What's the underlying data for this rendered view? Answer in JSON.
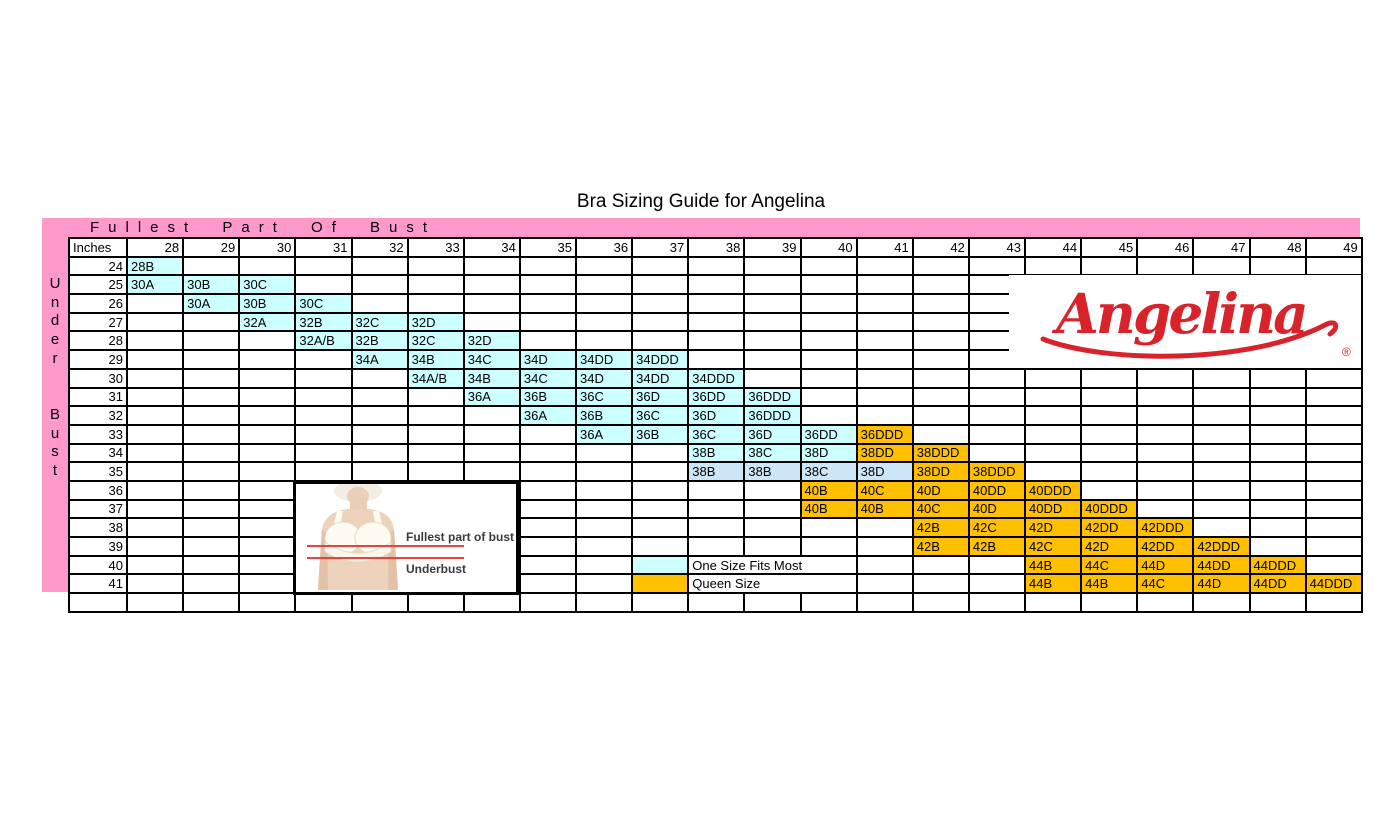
{
  "title": "Bra Sizing Guide for Angelina",
  "logo": {
    "text": "Angelina",
    "reg": "®"
  },
  "colors": {
    "pink_band": "#FF99CC",
    "purple_header": "#CC99FF",
    "one_size_fits_most": "#CCFFFF",
    "pale_blue": "#CDE6F7",
    "queen_size": "#FFC000",
    "grid_line": "#000000",
    "logo_red": "#D8232A",
    "measure_line_red": "#E8423C"
  },
  "diagram": {
    "bust_label": "Fullest part of bust",
    "underbust_label": "Underbust"
  },
  "chart_data": {
    "type": "table",
    "title": "Bra Sizing Guide for Angelina",
    "top_axis_label": "Fullest Part Of Bust",
    "left_axis_words": [
      "Under",
      "Bust"
    ],
    "corner_label": "Inches",
    "bust_inches": [
      28,
      29,
      30,
      31,
      32,
      33,
      34,
      35,
      36,
      37,
      38,
      39,
      40,
      41,
      42,
      43,
      44,
      45,
      46,
      47,
      48,
      49
    ],
    "legend": [
      {
        "label": "One Size Fits Most",
        "swatch": "fit",
        "row": 40,
        "swatch_col": 37,
        "label_col": 38,
        "label_span": 3
      },
      {
        "label": "Queen Size",
        "swatch": "queen",
        "row": 41,
        "swatch_col": 37,
        "label_col": 38,
        "label_span": 3
      }
    ],
    "underbust_rows": [
      {
        "underbust": 24,
        "cells": [
          {
            "col": 28,
            "size": "28B",
            "type": "fit"
          }
        ]
      },
      {
        "underbust": 25,
        "cells": [
          {
            "col": 28,
            "size": "30A",
            "type": "fit"
          },
          {
            "col": 29,
            "size": "30B",
            "type": "fit"
          },
          {
            "col": 30,
            "size": "30C",
            "type": "fit"
          }
        ]
      },
      {
        "underbust": 26,
        "cells": [
          {
            "col": 29,
            "size": "30A",
            "type": "fit"
          },
          {
            "col": 30,
            "size": "30B",
            "type": "fit"
          },
          {
            "col": 31,
            "size": "30C",
            "type": "fit"
          }
        ]
      },
      {
        "underbust": 27,
        "cells": [
          {
            "col": 30,
            "size": "32A",
            "type": "fit"
          },
          {
            "col": 31,
            "size": "32B",
            "type": "fit"
          },
          {
            "col": 32,
            "size": "32C",
            "type": "fit"
          },
          {
            "col": 33,
            "size": "32D",
            "type": "fit"
          }
        ]
      },
      {
        "underbust": 28,
        "cells": [
          {
            "col": 31,
            "size": "32A/B",
            "type": "fit"
          },
          {
            "col": 32,
            "size": "32B",
            "type": "fit"
          },
          {
            "col": 33,
            "size": "32C",
            "type": "fit"
          },
          {
            "col": 34,
            "size": "32D",
            "type": "fit"
          }
        ]
      },
      {
        "underbust": 29,
        "cells": [
          {
            "col": 32,
            "size": "34A",
            "type": "fit"
          },
          {
            "col": 33,
            "size": "34B",
            "type": "fit"
          },
          {
            "col": 34,
            "size": "34C",
            "type": "fit"
          },
          {
            "col": 35,
            "size": "34D",
            "type": "fit"
          },
          {
            "col": 36,
            "size": "34DD",
            "type": "fit"
          },
          {
            "col": 37,
            "size": "34DDD",
            "type": "fit"
          }
        ]
      },
      {
        "underbust": 30,
        "cells": [
          {
            "col": 33,
            "size": "34A/B",
            "type": "fit"
          },
          {
            "col": 34,
            "size": "34B",
            "type": "fit"
          },
          {
            "col": 35,
            "size": "34C",
            "type": "fit"
          },
          {
            "col": 36,
            "size": "34D",
            "type": "fit"
          },
          {
            "col": 37,
            "size": "34DD",
            "type": "fit"
          },
          {
            "col": 38,
            "size": "34DDD",
            "type": "fit"
          }
        ]
      },
      {
        "underbust": 31,
        "cells": [
          {
            "col": 34,
            "size": "36A",
            "type": "fit"
          },
          {
            "col": 35,
            "size": "36B",
            "type": "fit"
          },
          {
            "col": 36,
            "size": "36C",
            "type": "fit"
          },
          {
            "col": 37,
            "size": "36D",
            "type": "fit"
          },
          {
            "col": 38,
            "size": "36DD",
            "type": "fit"
          },
          {
            "col": 39,
            "size": "36DDD",
            "type": "fit"
          }
        ]
      },
      {
        "underbust": 32,
        "cells": [
          {
            "col": 35,
            "size": "36A",
            "type": "fit"
          },
          {
            "col": 36,
            "size": "36B",
            "type": "fit"
          },
          {
            "col": 37,
            "size": "36C",
            "type": "fit"
          },
          {
            "col": 38,
            "size": "36D",
            "type": "fit"
          },
          {
            "col": 39,
            "size": "36DDD",
            "type": "fit"
          }
        ]
      },
      {
        "underbust": 33,
        "cells": [
          {
            "col": 36,
            "size": "36A",
            "type": "fit"
          },
          {
            "col": 37,
            "size": "36B",
            "type": "fit"
          },
          {
            "col": 38,
            "size": "36C",
            "type": "fit"
          },
          {
            "col": 39,
            "size": "36D",
            "type": "fit"
          },
          {
            "col": 40,
            "size": "36DD",
            "type": "fit"
          },
          {
            "col": 41,
            "size": "36DDD",
            "type": "queen"
          }
        ]
      },
      {
        "underbust": 34,
        "cells": [
          {
            "col": 38,
            "size": "38B",
            "type": "fit"
          },
          {
            "col": 39,
            "size": "38C",
            "type": "fit"
          },
          {
            "col": 40,
            "size": "38D",
            "type": "fit"
          },
          {
            "col": 41,
            "size": "38DD",
            "type": "queen"
          },
          {
            "col": 42,
            "size": "38DDD",
            "type": "queen"
          }
        ]
      },
      {
        "underbust": 35,
        "cells": [
          {
            "col": 38,
            "size": "38B",
            "type": "pale"
          },
          {
            "col": 39,
            "size": "38B",
            "type": "pale"
          },
          {
            "col": 40,
            "size": "38C",
            "type": "pale"
          },
          {
            "col": 41,
            "size": "38D",
            "type": "pale"
          },
          {
            "col": 42,
            "size": "38DD",
            "type": "queen"
          },
          {
            "col": 43,
            "size": "38DDD",
            "type": "queen"
          }
        ]
      },
      {
        "underbust": 36,
        "cells": [
          {
            "col": 40,
            "size": "40B",
            "type": "queen"
          },
          {
            "col": 41,
            "size": "40C",
            "type": "queen"
          },
          {
            "col": 42,
            "size": "40D",
            "type": "queen"
          },
          {
            "col": 43,
            "size": "40DD",
            "type": "queen"
          },
          {
            "col": 44,
            "size": "40DDD",
            "type": "queen"
          }
        ]
      },
      {
        "underbust": 37,
        "cells": [
          {
            "col": 40,
            "size": "40B",
            "type": "queen"
          },
          {
            "col": 41,
            "size": "40B",
            "type": "queen"
          },
          {
            "col": 42,
            "size": "40C",
            "type": "queen"
          },
          {
            "col": 43,
            "size": "40D",
            "type": "queen"
          },
          {
            "col": 44,
            "size": "40DD",
            "type": "queen"
          },
          {
            "col": 45,
            "size": "40DDD",
            "type": "queen"
          }
        ]
      },
      {
        "underbust": 38,
        "cells": [
          {
            "col": 42,
            "size": "42B",
            "type": "queen"
          },
          {
            "col": 43,
            "size": "42C",
            "type": "queen"
          },
          {
            "col": 44,
            "size": "42D",
            "type": "queen"
          },
          {
            "col": 45,
            "size": "42DD",
            "type": "queen"
          },
          {
            "col": 46,
            "size": "42DDD",
            "type": "queen"
          }
        ]
      },
      {
        "underbust": 39,
        "cells": [
          {
            "col": 42,
            "size": "42B",
            "type": "queen"
          },
          {
            "col": 43,
            "size": "42B",
            "type": "queen"
          },
          {
            "col": 44,
            "size": "42C",
            "type": "queen"
          },
          {
            "col": 45,
            "size": "42D",
            "type": "queen"
          },
          {
            "col": 46,
            "size": "42DD",
            "type": "queen"
          },
          {
            "col": 47,
            "size": "42DDD",
            "type": "queen"
          }
        ]
      },
      {
        "underbust": 40,
        "cells": [
          {
            "col": 44,
            "size": "44B",
            "type": "queen"
          },
          {
            "col": 45,
            "size": "44C",
            "type": "queen"
          },
          {
            "col": 46,
            "size": "44D",
            "type": "queen"
          },
          {
            "col": 47,
            "size": "44DD",
            "type": "queen"
          },
          {
            "col": 48,
            "size": "44DDD",
            "type": "queen"
          }
        ]
      },
      {
        "underbust": 41,
        "cells": [
          {
            "col": 44,
            "size": "44B",
            "type": "queen"
          },
          {
            "col": 45,
            "size": "44B",
            "type": "queen"
          },
          {
            "col": 46,
            "size": "44C",
            "type": "queen"
          },
          {
            "col": 47,
            "size": "44D",
            "type": "queen"
          },
          {
            "col": 48,
            "size": "44DD",
            "type": "queen"
          },
          {
            "col": 49,
            "size": "44DDD",
            "type": "queen"
          }
        ]
      }
    ],
    "trailing_empty_row": true
  }
}
